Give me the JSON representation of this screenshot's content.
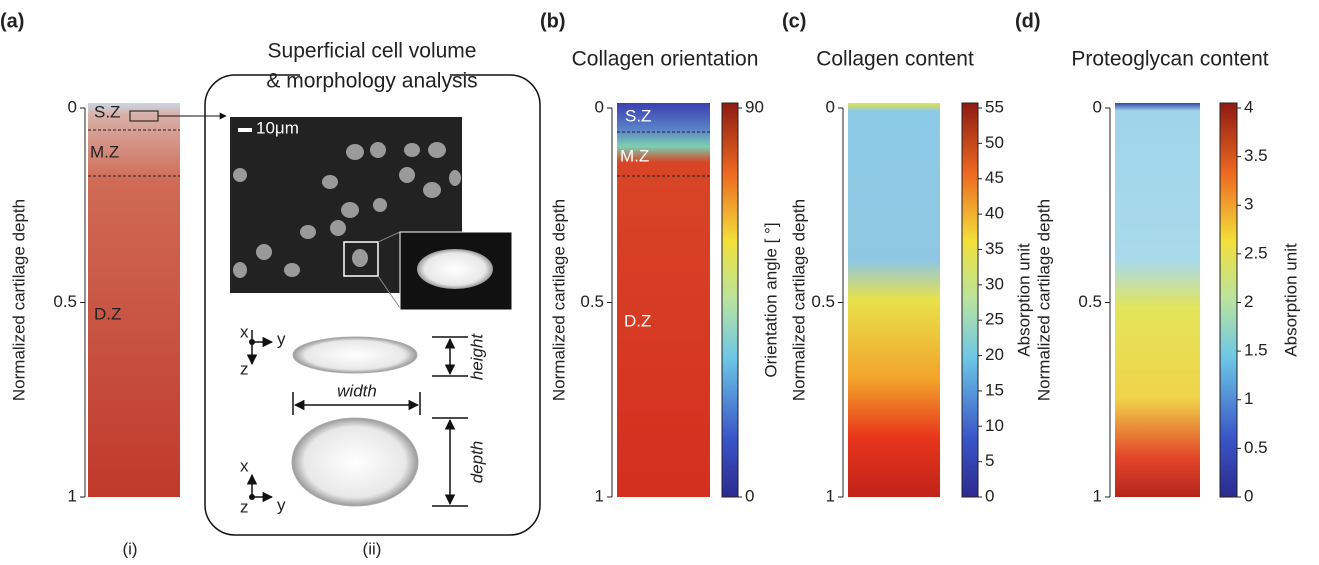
{
  "panels": {
    "a": {
      "label": "(a)",
      "i": {
        "label": "(i)",
        "y_axis": "Normalized cartilage depth",
        "yticks": [
          0,
          0.5,
          1
        ],
        "zones": [
          "S.Z",
          "M.Z",
          "D.Z"
        ]
      },
      "ii": {
        "label": "(ii)",
        "title": [
          "Superficial cell volume",
          "& morphology analysis"
        ],
        "scale_bar": "10μm",
        "axes_side": [
          "x",
          "y",
          "z"
        ],
        "axes_top": [
          "x",
          "z",
          "y"
        ],
        "dimensions": [
          "height",
          "width",
          "depth"
        ]
      }
    },
    "b": {
      "label": "(b)",
      "title": "Collagen orientation",
      "y_axis": "Normalized cartilage depth",
      "yticks": [
        0,
        0.5,
        1
      ],
      "zones": [
        "S.Z",
        "M.Z",
        "D.Z"
      ],
      "colorbar_label": "Orientation angle [ °]",
      "colorbar_ticks": [
        0,
        90
      ]
    },
    "c": {
      "label": "(c)",
      "title": "Collagen content",
      "y_axis": "Normalized cartilage depth",
      "yticks": [
        0,
        0.5,
        1
      ],
      "colorbar_label": "Absorption unit",
      "colorbar_ticks": [
        0,
        5,
        10,
        15,
        20,
        25,
        30,
        35,
        40,
        45,
        50,
        55
      ]
    },
    "d": {
      "label": "(d)",
      "title": "Proteoglycan content",
      "y_axis": "Normalized cartilage depth",
      "yticks": [
        0,
        0.5,
        1
      ],
      "colorbar_label": "Absorption unit",
      "colorbar_ticks": [
        0,
        0.5,
        1,
        1.5,
        2,
        2.5,
        3,
        3.5,
        4
      ]
    }
  }
}
